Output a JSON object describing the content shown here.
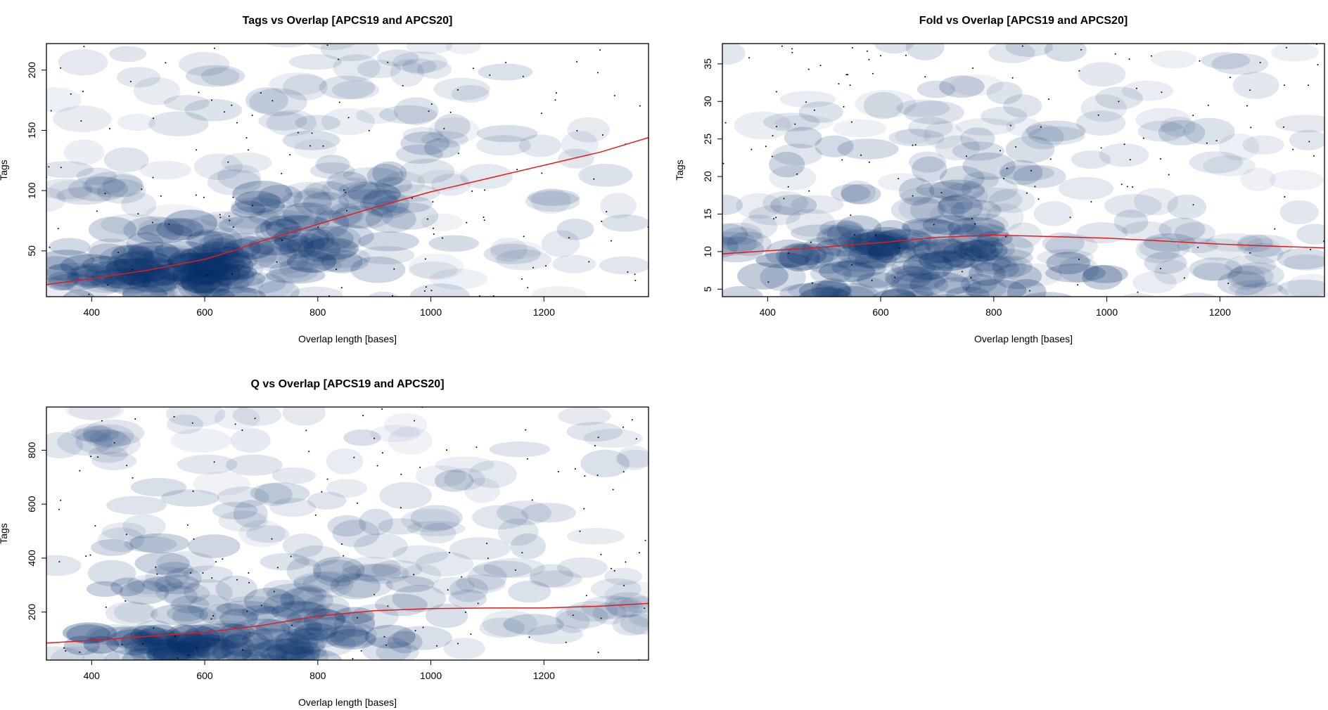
{
  "chart_data": [
    {
      "type": "scatter",
      "style": "smoothed density scatter with loess fit",
      "title": "Tags vs Overlap [APCS19 and APCS20]",
      "xlabel": "Overlap length [bases]",
      "ylabel": "Tags",
      "xlim": [
        320,
        1385
      ],
      "ylim": [
        12,
        222
      ],
      "xticks": [
        400,
        600,
        800,
        1000,
        1200
      ],
      "yticks": [
        50,
        100,
        150,
        200
      ],
      "grid": false,
      "density_color": "#08306b",
      "fit_color": "#e41a1c",
      "density_clusters": [
        {
          "x": 480,
          "y": 30,
          "w": 1.0,
          "sx": 90,
          "sy": 10
        },
        {
          "x": 620,
          "y": 38,
          "w": 1.0,
          "sx": 90,
          "sy": 15
        },
        {
          "x": 720,
          "y": 55,
          "w": 0.8,
          "sx": 90,
          "sy": 22
        },
        {
          "x": 820,
          "y": 75,
          "w": 0.55,
          "sx": 110,
          "sy": 30
        },
        {
          "x": 950,
          "y": 100,
          "w": 0.4,
          "sx": 140,
          "sy": 40
        },
        {
          "x": 800,
          "y": 150,
          "w": 0.3,
          "sx": 150,
          "sy": 35
        },
        {
          "x": 1150,
          "y": 120,
          "w": 0.25,
          "sx": 150,
          "sy": 50
        },
        {
          "x": 420,
          "y": 105,
          "w": 0.2,
          "sx": 30,
          "sy": 10
        },
        {
          "x": 850,
          "y": 205,
          "w": 0.2,
          "sx": 120,
          "sy": 10
        }
      ],
      "loess": {
        "x": [
          320,
          400,
          500,
          600,
          650,
          700,
          800,
          900,
          1000,
          1100,
          1200,
          1300,
          1385
        ],
        "y": [
          22,
          27,
          34,
          43,
          50,
          58,
          72,
          86,
          99,
          110,
          121,
          132,
          144
        ]
      }
    },
    {
      "type": "scatter",
      "style": "smoothed density scatter with loess fit",
      "title": "Fold vs Overlap [APCS19 and APCS20]",
      "xlabel": "Overlap length [bases]",
      "ylabel": "Tags",
      "xlim": [
        320,
        1385
      ],
      "ylim": [
        4,
        37.7
      ],
      "xticks": [
        400,
        600,
        800,
        1000,
        1200
      ],
      "yticks": [
        5,
        10,
        15,
        20,
        25,
        30,
        35
      ],
      "grid": false,
      "density_color": "#08306b",
      "fit_color": "#e41a1c",
      "density_clusters": [
        {
          "x": 580,
          "y": 9,
          "w": 1.0,
          "sx": 120,
          "sy": 3
        },
        {
          "x": 750,
          "y": 8,
          "w": 0.8,
          "sx": 150,
          "sy": 3
        },
        {
          "x": 700,
          "y": 15,
          "w": 0.6,
          "sx": 130,
          "sy": 6
        },
        {
          "x": 700,
          "y": 26,
          "w": 0.45,
          "sx": 140,
          "sy": 8
        },
        {
          "x": 450,
          "y": 13,
          "w": 0.45,
          "sx": 100,
          "sy": 7
        },
        {
          "x": 1050,
          "y": 12,
          "w": 0.35,
          "sx": 150,
          "sy": 8
        },
        {
          "x": 1200,
          "y": 8,
          "w": 0.3,
          "sx": 120,
          "sy": 3
        },
        {
          "x": 1150,
          "y": 24,
          "w": 0.25,
          "sx": 120,
          "sy": 8
        }
      ],
      "loess": {
        "x": [
          320,
          400,
          500,
          600,
          700,
          800,
          900,
          1000,
          1100,
          1200,
          1300,
          1385
        ],
        "y": [
          9.7,
          10.1,
          10.6,
          11.2,
          11.9,
          12.2,
          12.0,
          11.8,
          11.4,
          11.0,
          10.7,
          10.5
        ]
      }
    },
    {
      "type": "scatter",
      "style": "smoothed density scatter with loess fit",
      "title": "Q vs Overlap [APCS19 and APCS20]",
      "xlabel": "Overlap length [bases]",
      "ylabel": "Tags",
      "xlim": [
        320,
        1385
      ],
      "ylim": [
        22,
        960
      ],
      "xticks": [
        400,
        600,
        800,
        1000,
        1200
      ],
      "yticks": [
        200,
        400,
        600,
        800
      ],
      "grid": false,
      "density_color": "#08306b",
      "fit_color": "#e41a1c",
      "density_clusters": [
        {
          "x": 560,
          "y": 80,
          "w": 1.0,
          "sx": 120,
          "sy": 40
        },
        {
          "x": 720,
          "y": 100,
          "w": 0.8,
          "sx": 120,
          "sy": 60
        },
        {
          "x": 600,
          "y": 280,
          "w": 0.55,
          "sx": 150,
          "sy": 120
        },
        {
          "x": 800,
          "y": 300,
          "w": 0.45,
          "sx": 150,
          "sy": 120
        },
        {
          "x": 700,
          "y": 650,
          "w": 0.35,
          "sx": 150,
          "sy": 150
        },
        {
          "x": 1000,
          "y": 250,
          "w": 0.3,
          "sx": 150,
          "sy": 150
        },
        {
          "x": 1150,
          "y": 500,
          "w": 0.25,
          "sx": 150,
          "sy": 150
        },
        {
          "x": 410,
          "y": 830,
          "w": 0.2,
          "sx": 30,
          "sy": 25
        },
        {
          "x": 1350,
          "y": 220,
          "w": 0.15,
          "sx": 40,
          "sy": 40
        }
      ],
      "loess": {
        "x": [
          320,
          400,
          500,
          600,
          700,
          800,
          900,
          1000,
          1100,
          1200,
          1300,
          1385
        ],
        "y": [
          85,
          95,
          110,
          125,
          150,
          185,
          205,
          213,
          215,
          215,
          222,
          232
        ]
      }
    }
  ]
}
